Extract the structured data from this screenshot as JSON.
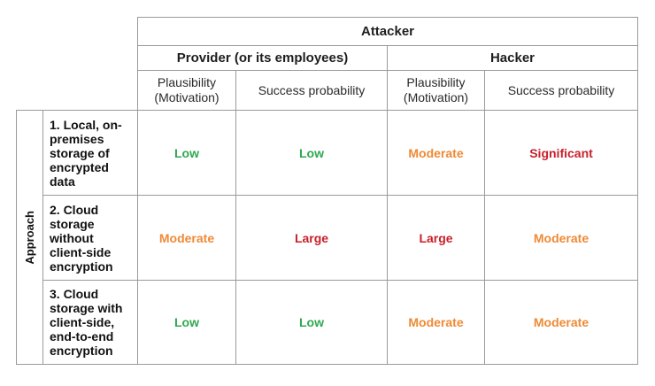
{
  "attacker_label": "Attacker",
  "attacker_groups": [
    "Provider (or its employees)",
    "Hacker"
  ],
  "column_headers": [
    "Plausibility\n(Motivation)",
    "Success probability",
    "Plausibility\n(Motivation)",
    "Success probability"
  ],
  "approach_label": "Approach",
  "rows": [
    {
      "label": "1. Local, on-\npremises\nstorage of\nencrypted\ndata",
      "values": [
        "Low",
        "Low",
        "Moderate",
        "Significant"
      ]
    },
    {
      "label": "2. Cloud\nstorage\nwithout\nclient-side\nencryption",
      "values": [
        "Moderate",
        "Large",
        "Large",
        "Moderate"
      ]
    },
    {
      "label": "3. Cloud\nstorage with\nclient-side,\nend-to-end\nencryption",
      "values": [
        "Low",
        "Low",
        "Moderate",
        "Moderate"
      ]
    }
  ],
  "level_colors": {
    "Low": "#2fa84f",
    "Moderate": "#ee8a35",
    "Large": "#c8202a",
    "Significant": "#c8202a"
  }
}
